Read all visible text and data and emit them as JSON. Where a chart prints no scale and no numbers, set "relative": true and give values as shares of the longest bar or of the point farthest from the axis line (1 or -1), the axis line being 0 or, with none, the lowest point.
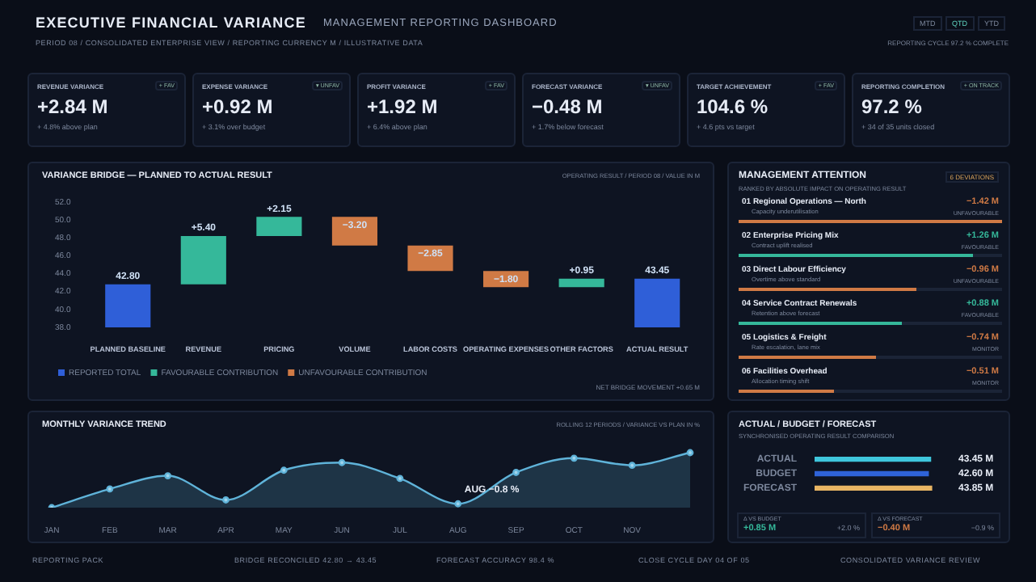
{
  "chart_data": [
    {
      "type": "other",
      "title": "EXECUTIVE FINANCIAL VARIANCE",
      "subtitle": "MANAGEMENT REPORTING DASHBOARD",
      "categories": [
        "REVENUE VARIANCE",
        "EXPENSE VARIANCE",
        "PROFIT VARIANCE",
        "FORECAST VARIANCE",
        "TARGET ACHIEVEMENT",
        "REPORTING COMPLETION"
      ],
      "value_labels": [
        "+2.84 M",
        "+0.92 M",
        "+1.92 M",
        "−0.48 M",
        "104.6 %",
        "97.2 %"
      ],
      "annotations": [
        "PERIOD 08 / CONSOLIDATED ENTERPRISE VIEW / REPORTING CURRENCY M / ILLUSTRATIVE DATA",
        "MTD",
        "QTD",
        "YTD",
        "REPORTING CYCLE 97.2 % COMPLETE",
        "+ FAV",
        "+ 4.8% above plan",
        "▾ UNFAV",
        "+ 3.1% over budget",
        "+ FAV",
        "+ 6.4% above plan",
        "▾ UNFAV",
        "+ 1.7% below forecast",
        "+ FAV",
        "+ 4.6 pts vs target",
        "+ ON TRACK",
        "+ 34 of 35 units closed",
        "REPORTING PACK",
        "BRIDGE RECONCILED 42.80 → 43.45",
        "FORECAST ACCURACY 98.4 %",
        "CLOSE CYCLE DAY 04 OF 05",
        "CONSOLIDATED VARIANCE REVIEW"
      ]
    },
    {
      "type": "bar",
      "title": "VARIANCE BRIDGE — PLANNED TO ACTUAL RESULT",
      "categories": [
        "PLANNED BASELINE",
        "REVENUE",
        "PRICING",
        "VOLUME",
        "LABOR COSTS",
        "OPERATING EXPENSES",
        "OTHER FACTORS",
        "ACTUAL RESULT"
      ],
      "series": [
        {
          "name": "REPORTED TOTAL",
          "color": "#2f5fd8",
          "base": [
            null,
            null,
            null,
            null,
            null,
            null,
            null,
            null
          ],
          "values": [
            42.8,
            null,
            null,
            null,
            null,
            null,
            null,
            43.45
          ],
          "value_labels": [
            "42.80",
            null,
            null,
            null,
            null,
            null,
            null,
            "43.45"
          ]
        },
        {
          "name": "FAVOURABLE CONTRIBUTION",
          "color": "#35b89a",
          "base": [
            null,
            42.8,
            48.2,
            null,
            null,
            null,
            42.5,
            null
          ],
          "values": [
            null,
            5.4,
            2.15,
            null,
            null,
            null,
            0.95,
            null
          ],
          "value_labels": [
            null,
            "+5.40",
            "+2.15",
            null,
            null,
            null,
            "+0.95",
            null
          ]
        },
        {
          "name": "UNFAVOURABLE CONTRIBUTION",
          "color": "#d07a45",
          "base": [
            null,
            null,
            null,
            50.35,
            47.15,
            44.3,
            null,
            null
          ],
          "values": [
            null,
            null,
            null,
            -3.2,
            -2.85,
            -1.8,
            null,
            null
          ],
          "value_labels": [
            null,
            null,
            null,
            "−3.20",
            "−2.85",
            "−1.80",
            null,
            null
          ]
        }
      ],
      "ylim": [
        38,
        52
      ],
      "yticks": [
        {
          "value": 38,
          "label": "38.0"
        },
        {
          "value": 40,
          "label": "40.0"
        },
        {
          "value": 42,
          "label": "42.0"
        },
        {
          "value": 44,
          "label": "44.0"
        },
        {
          "value": 46,
          "label": "46.0"
        },
        {
          "value": 48,
          "label": "48.0"
        },
        {
          "value": 50,
          "label": "50.0"
        },
        {
          "value": 52,
          "label": "52.0"
        }
      ],
      "legend": "bottom left",
      "annotations": [
        "OPERATING RESULT / PERIOD 08 / VALUE IN M",
        "NET BRIDGE MOVEMENT +0.65 M"
      ]
    },
    {
      "type": "other",
      "title": "MANAGEMENT ATTENTION",
      "subtitle": "RANKED BY ABSOLUTE IMPACT ON OPERATING RESULT",
      "categories": [
        "01 Regional Operations — North",
        "02 Enterprise Pricing Mix",
        "03 Direct Labour Efficiency",
        "04 Service Contract Renewals",
        "05 Logistics & Freight",
        "06 Facilities Overhead"
      ],
      "values": [
        -1.42,
        1.26,
        -0.96,
        0.88,
        -0.74,
        -0.51
      ],
      "value_labels": [
        "−1.42 M",
        "+1.26 M",
        "−0.96 M",
        "+0.88 M",
        "−0.74 M",
        "−0.51 M"
      ],
      "annotations": [
        "6 DEVIATIONS",
        "Capacity underutilisation",
        "UNFAVOURABLE",
        "Contract uplift realised",
        "FAVOURABLE",
        "Overtime above standard",
        "UNFAVOURABLE",
        "Retention above forecast",
        "FAVOURABLE",
        "Rate escalation, lane mix",
        "MONITOR",
        "Allocation timing shift",
        "MONITOR"
      ]
    },
    {
      "type": "area",
      "title": "MONTHLY VARIANCE TREND",
      "subtitle": "ROLLING 12 PERIODS / VARIANCE VS PLAN IN %",
      "categories": [
        "JAN",
        "FEB",
        "MAR",
        "APR",
        "MAY",
        "JUN",
        "JUL",
        "AUG",
        "SEP",
        "OCT",
        "NOV",
        null
      ],
      "relative": true,
      "series": [
        {
          "color": "#5fb3d9",
          "values": [
            0,
            0.34,
            0.58,
            0.14,
            0.68,
            0.82,
            0.53,
            0.07,
            0.64,
            0.9,
            0.77,
            1
          ]
        }
      ],
      "marker": "circle",
      "annotations": [
        {
          "text": "AUG −0.8 %",
          "x": "AUG",
          "y": 0.07
        }
      ]
    },
    {
      "type": "bar",
      "orientation": "horizontal",
      "title": "ACTUAL / BUDGET / FORECAST",
      "subtitle": "SYNCHRONISED OPERATING RESULT COMPARISON",
      "categories": [
        "ACTUAL",
        "BUDGET",
        "FORECAST"
      ],
      "values": [
        43.45,
        42.6,
        43.85
      ],
      "colors": [
        "#3fc6dc",
        "#2f63d8",
        "#e8b563"
      ],
      "value_labels": [
        "43.45 M",
        "42.60 M",
        "43.85 M"
      ],
      "annotations": [
        "Δ VS BUDGET",
        "+0.85 M",
        "+2.0 %",
        "Δ VS FORECAST",
        "−0.40 M",
        "−0.9 %"
      ]
    }
  ]
}
